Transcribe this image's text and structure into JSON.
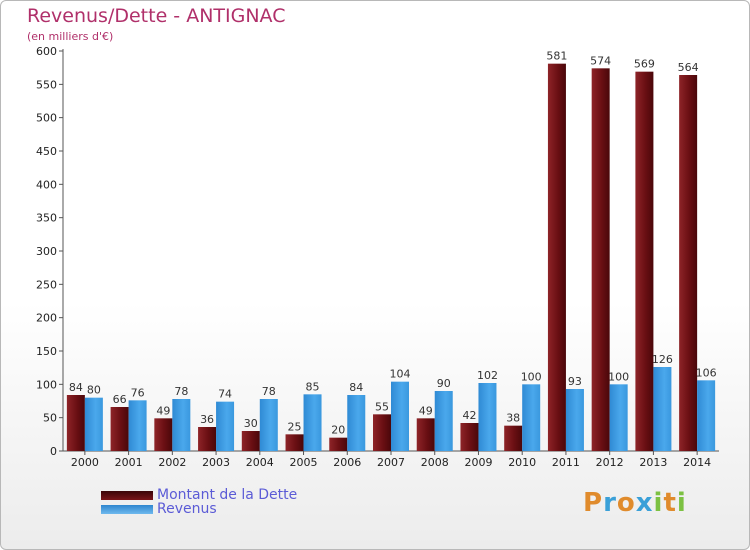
{
  "chart_data": {
    "type": "bar",
    "title": "Revenus/Dette - ANTIGNAC",
    "subtitle": "(en milliers d'€)",
    "categories": [
      "2000",
      "2001",
      "2002",
      "2003",
      "2004",
      "2005",
      "2006",
      "2007",
      "2008",
      "2009",
      "2010",
      "2011",
      "2012",
      "2013",
      "2014"
    ],
    "series": [
      {
        "name": "Montant de la Dette",
        "color": "#7a1418",
        "values": [
          84,
          66,
          49,
          36,
          30,
          25,
          20,
          55,
          49,
          42,
          38,
          581,
          574,
          569,
          564
        ]
      },
      {
        "name": "Revenus",
        "color": "#3d9be0",
        "values": [
          80,
          76,
          78,
          74,
          78,
          85,
          84,
          104,
          90,
          102,
          100,
          93,
          100,
          126,
          106
        ]
      }
    ],
    "ylim": [
      0,
      600
    ],
    "yticks": [
      0,
      50,
      100,
      150,
      200,
      250,
      300,
      350,
      400,
      450,
      500,
      550,
      600
    ],
    "grid": false,
    "legend_position": "bottom-left"
  },
  "legend": {
    "debt_label": "Montant de la Dette",
    "revenue_label": "Revenus"
  },
  "logo": {
    "letters": [
      "P",
      "r",
      "o",
      "x",
      "i",
      "t",
      "i"
    ],
    "colors": [
      "#e08b2c",
      "#3aa0d8",
      "#e08b2c",
      "#3aa0d8",
      "#7cc142",
      "#e08b2c",
      "#7cc142"
    ]
  }
}
